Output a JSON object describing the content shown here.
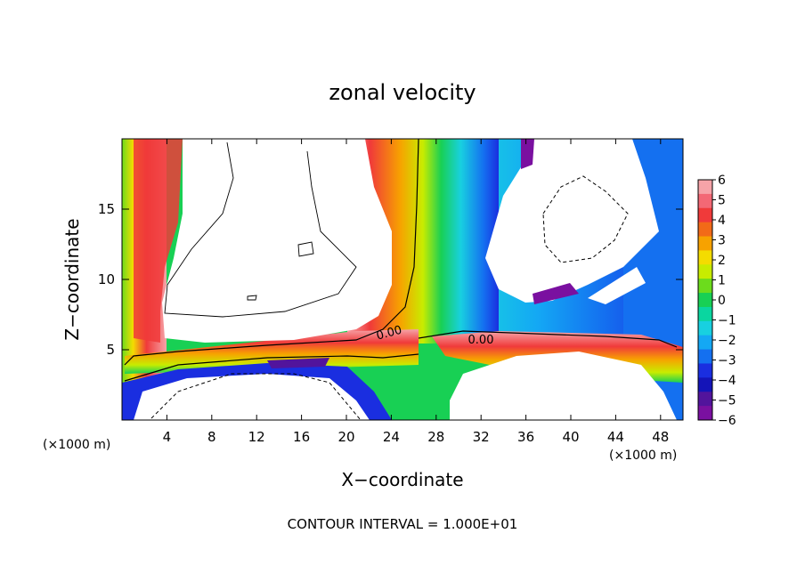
{
  "chart_data": {
    "type": "heatmap",
    "title": "zonal velocity",
    "xlabel": "X−coordinate",
    "ylabel": "Z−coordinate",
    "x_unit_left": "(×1000 m)",
    "x_unit_right": "(×1000 m)",
    "xlim": [
      0,
      50
    ],
    "ylim": [
      0,
      20
    ],
    "xticks": [
      4,
      8,
      12,
      16,
      20,
      24,
      28,
      32,
      36,
      40,
      44,
      48
    ],
    "yticks": [
      5,
      10,
      15
    ],
    "contour_labels": [
      {
        "text": "0.00",
        "x": 24.5,
        "y": 6.3
      },
      {
        "text": "0.00",
        "x": 32.5,
        "y": 5.6
      }
    ],
    "colorbar": {
      "ticks": [
        6,
        5,
        4,
        3,
        2,
        1,
        0,
        -1,
        -2,
        -3,
        -4,
        -5,
        -6
      ],
      "tick_labels": [
        "6",
        "5",
        "4",
        "3",
        "2",
        "1",
        "0",
        "−1",
        "−2",
        "−3",
        "−4",
        "−5",
        "−6"
      ],
      "colors": [
        "#f6a3a8",
        "#f36875",
        "#f03a3a",
        "#f26a18",
        "#f7a200",
        "#f4dc00",
        "#c8ec00",
        "#6cdc1c",
        "#18d054",
        "#0ad6a0",
        "#18d0e0",
        "#14a8f4",
        "#1470f0",
        "#1a2ee0",
        "#1414b8",
        "#52149c",
        "#7a10a0"
      ]
    },
    "footer": "CONTOUR INTERVAL = 1.000E+01"
  }
}
